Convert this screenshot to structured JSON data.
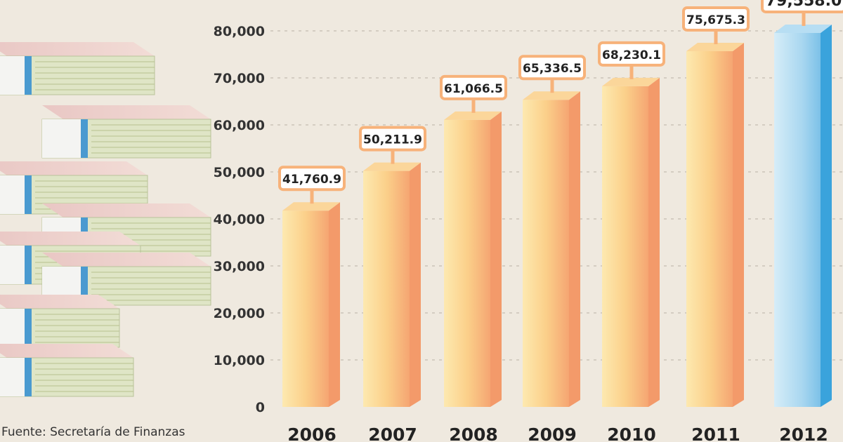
{
  "chart_data": {
    "type": "bar",
    "title": "",
    "xlabel": "",
    "ylabel": "",
    "categories": [
      "2006",
      "2007",
      "2008",
      "2009",
      "2010",
      "2011",
      "2012"
    ],
    "values": [
      41760.9,
      50211.9,
      61066.5,
      65336.5,
      68230.1,
      75675.3,
      79558.0
    ],
    "value_labels": [
      "41,760.9",
      "50,211.9",
      "61,066.5",
      "65,336.5",
      "68,230.1",
      "75,675.3",
      "79,558.0"
    ],
    "highlight_category": "2012",
    "ylim": [
      0,
      80000
    ],
    "yticks": [
      0,
      10000,
      20000,
      30000,
      40000,
      50000,
      60000,
      70000,
      80000
    ],
    "ytick_labels": [
      "0",
      "10,000",
      "20,000",
      "30,000",
      "40,000",
      "50,000",
      "60,000",
      "70,000",
      "80,000"
    ],
    "grid": true,
    "colors": {
      "bar_light": "#fde3a0",
      "bar_dark": "#f39a6a",
      "highlight_light": "#cfe9f7",
      "highlight_dark": "#3aa3dc",
      "label_border": "#f7b27a"
    }
  },
  "source": "Fuente: Secretaría de Finanzas"
}
